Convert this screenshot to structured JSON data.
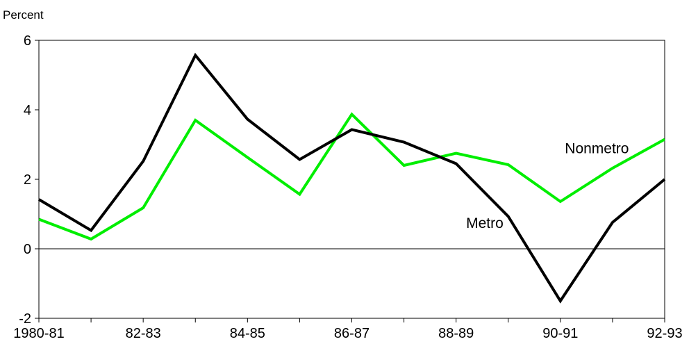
{
  "chart_data": {
    "type": "line",
    "title": "",
    "ylabel": "Percent",
    "xlabel": "",
    "ylim": [
      -2,
      6
    ],
    "yticks": [
      -2,
      0,
      2,
      4,
      6
    ],
    "x": [
      "1980-81",
      "81-82",
      "82-83",
      "83-84",
      "84-85",
      "85-86",
      "86-87",
      "87-88",
      "88-89",
      "89-90",
      "90-91",
      "91-92",
      "92-93"
    ],
    "x_tick_labels": [
      "1980-81",
      "82-83",
      "84-85",
      "86-87",
      "88-89",
      "90-91",
      "92-93"
    ],
    "grid": false,
    "zero_line": true,
    "series": [
      {
        "name": "Metro",
        "color": "#000000",
        "values": [
          1.42,
          0.53,
          2.52,
          5.57,
          3.73,
          2.57,
          3.43,
          3.07,
          2.45,
          0.93,
          -1.5,
          0.76,
          2.0
        ]
      },
      {
        "name": "Nonmetro",
        "color": "#00ee00",
        "values": [
          0.85,
          0.28,
          1.18,
          3.7,
          2.63,
          1.57,
          3.87,
          2.4,
          2.75,
          2.42,
          1.36,
          2.32,
          3.15
        ]
      }
    ]
  }
}
